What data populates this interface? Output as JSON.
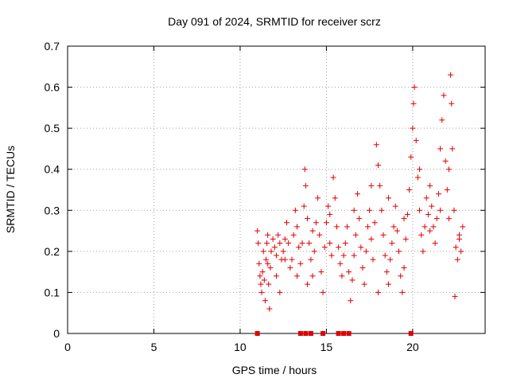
{
  "chart_data": {
    "type": "scatter",
    "title": "Day 091 of 2024, SRMTID for receiver scrz",
    "xlabel": "GPS time / hours",
    "ylabel": "SRMTID / TECUs",
    "xlim": [
      0,
      24.2
    ],
    "ylim": [
      0,
      0.7
    ],
    "x_ticks": [
      "0",
      "5",
      "10",
      "15",
      "20"
    ],
    "y_ticks": [
      "0",
      "0.1",
      "0.2",
      "0.3",
      "0.4",
      "0.5",
      "0.6",
      "0.7"
    ],
    "grid": true,
    "marker": "+",
    "series_color": "#e00000",
    "grid_color": "#a0a0a0",
    "series": [
      {
        "name": "SRMTID",
        "points": [
          [
            11.0,
            0.25
          ],
          [
            11.05,
            0.22
          ],
          [
            11.1,
            0.17
          ],
          [
            11.15,
            0.14
          ],
          [
            11.2,
            0.12
          ],
          [
            11.25,
            0.1
          ],
          [
            11.3,
            0.15
          ],
          [
            11.35,
            0.2
          ],
          [
            11.4,
            0.13
          ],
          [
            11.45,
            0.08
          ],
          [
            11.5,
            0.18
          ],
          [
            11.55,
            0.22
          ],
          [
            11.6,
            0.24
          ],
          [
            11.65,
            0.12
          ],
          [
            11.7,
            0.06
          ],
          [
            11.75,
            0.16
          ],
          [
            11.8,
            0.2
          ],
          [
            11.9,
            0.23
          ],
          [
            12.0,
            0.21
          ],
          [
            12.1,
            0.19
          ],
          [
            12.2,
            0.24
          ],
          [
            12.3,
            0.22
          ],
          [
            12.4,
            0.18
          ],
          [
            12.5,
            0.2
          ],
          [
            12.6,
            0.23
          ],
          [
            12.7,
            0.27
          ],
          [
            12.8,
            0.22
          ],
          [
            12.9,
            0.16
          ],
          [
            13.0,
            0.18
          ],
          [
            13.1,
            0.24
          ],
          [
            13.2,
            0.3
          ],
          [
            13.3,
            0.26
          ],
          [
            13.4,
            0.21
          ],
          [
            13.5,
            0.17
          ],
          [
            13.6,
            0.22
          ],
          [
            13.7,
            0.31
          ],
          [
            13.75,
            0.4
          ],
          [
            13.8,
            0.36
          ],
          [
            13.9,
            0.28
          ],
          [
            14.0,
            0.22
          ],
          [
            14.1,
            0.18
          ],
          [
            14.2,
            0.14
          ],
          [
            14.3,
            0.2
          ],
          [
            14.4,
            0.27
          ],
          [
            14.5,
            0.33
          ],
          [
            14.6,
            0.24
          ],
          [
            14.7,
            0.15
          ],
          [
            14.8,
            0.1
          ],
          [
            14.9,
            0.21
          ],
          [
            15.0,
            0.27
          ],
          [
            15.1,
            0.31
          ],
          [
            15.2,
            0.22
          ],
          [
            15.3,
            0.19
          ],
          [
            15.4,
            0.38
          ],
          [
            15.5,
            0.33
          ],
          [
            15.6,
            0.26
          ],
          [
            15.7,
            0.21
          ],
          [
            15.8,
            0.17
          ],
          [
            15.9,
            0.14
          ],
          [
            16.0,
            0.19
          ],
          [
            16.1,
            0.22
          ],
          [
            16.2,
            0.26
          ],
          [
            16.3,
            0.15
          ],
          [
            16.4,
            0.08
          ],
          [
            16.5,
            0.13
          ],
          [
            16.6,
            0.19
          ],
          [
            16.7,
            0.24
          ],
          [
            16.8,
            0.34
          ],
          [
            16.9,
            0.28
          ],
          [
            17.0,
            0.21
          ],
          [
            17.1,
            0.16
          ],
          [
            17.2,
            0.12
          ],
          [
            17.3,
            0.2
          ],
          [
            17.4,
            0.26
          ],
          [
            17.5,
            0.3
          ],
          [
            17.6,
            0.23
          ],
          [
            17.7,
            0.18
          ],
          [
            17.8,
            0.27
          ],
          [
            17.9,
            0.46
          ],
          [
            18.0,
            0.41
          ],
          [
            18.1,
            0.36
          ],
          [
            18.2,
            0.3
          ],
          [
            18.3,
            0.24
          ],
          [
            18.4,
            0.19
          ],
          [
            18.5,
            0.15
          ],
          [
            18.6,
            0.12
          ],
          [
            18.7,
            0.18
          ],
          [
            18.8,
            0.22
          ],
          [
            18.9,
            0.26
          ],
          [
            19.0,
            0.31
          ],
          [
            19.1,
            0.25
          ],
          [
            19.2,
            0.2
          ],
          [
            19.3,
            0.14
          ],
          [
            19.4,
            0.1
          ],
          [
            19.5,
            0.16
          ],
          [
            19.6,
            0.23
          ],
          [
            19.7,
            0.29
          ],
          [
            19.8,
            0.35
          ],
          [
            19.9,
            0.43
          ],
          [
            20.0,
            0.5
          ],
          [
            20.05,
            0.56
          ],
          [
            20.1,
            0.6
          ],
          [
            20.2,
            0.47
          ],
          [
            20.3,
            0.38
          ],
          [
            20.4,
            0.3
          ],
          [
            20.5,
            0.24
          ],
          [
            20.6,
            0.2
          ],
          [
            20.7,
            0.26
          ],
          [
            20.8,
            0.33
          ],
          [
            20.9,
            0.29
          ],
          [
            21.0,
            0.36
          ],
          [
            21.1,
            0.31
          ],
          [
            21.2,
            0.26
          ],
          [
            21.3,
            0.22
          ],
          [
            21.4,
            0.28
          ],
          [
            21.5,
            0.34
          ],
          [
            21.6,
            0.45
          ],
          [
            21.7,
            0.52
          ],
          [
            21.8,
            0.58
          ],
          [
            21.9,
            0.42
          ],
          [
            22.0,
            0.35
          ],
          [
            22.1,
            0.28
          ],
          [
            22.2,
            0.63
          ],
          [
            22.25,
            0.56
          ],
          [
            22.3,
            0.45
          ],
          [
            22.4,
            0.3
          ],
          [
            22.45,
            0.09
          ],
          [
            22.5,
            0.21
          ],
          [
            22.6,
            0.18
          ],
          [
            22.7,
            0.24
          ],
          [
            22.8,
            0.2
          ],
          [
            22.9,
            0.26
          ],
          [
            11.6,
            0.17
          ],
          [
            12.1,
            0.14
          ],
          [
            12.6,
            0.18
          ],
          [
            13.3,
            0.14
          ],
          [
            14.2,
            0.25
          ],
          [
            15.2,
            0.29
          ],
          [
            16.6,
            0.3
          ],
          [
            17.6,
            0.36
          ],
          [
            18.6,
            0.33
          ],
          [
            19.5,
            0.28
          ],
          [
            20.4,
            0.4
          ],
          [
            21.0,
            0.25
          ],
          [
            21.6,
            0.3
          ],
          [
            22.1,
            0.4
          ],
          [
            22.7,
            0.23
          ],
          [
            12.3,
            0.1
          ],
          [
            13.9,
            0.12
          ],
          [
            18.0,
            0.1
          ]
        ]
      }
    ],
    "data_gaps": [
      {
        "hour": 11.0,
        "value": 0
      },
      {
        "hour": 13.5,
        "value": 0
      },
      {
        "hour": 13.8,
        "value": 0
      },
      {
        "hour": 14.1,
        "value": 0
      },
      {
        "hour": 14.8,
        "value": 0
      },
      {
        "hour": 15.7,
        "value": 0
      },
      {
        "hour": 16.0,
        "value": 0
      },
      {
        "hour": 16.3,
        "value": 0
      },
      {
        "hour": 19.9,
        "value": 0
      }
    ]
  }
}
